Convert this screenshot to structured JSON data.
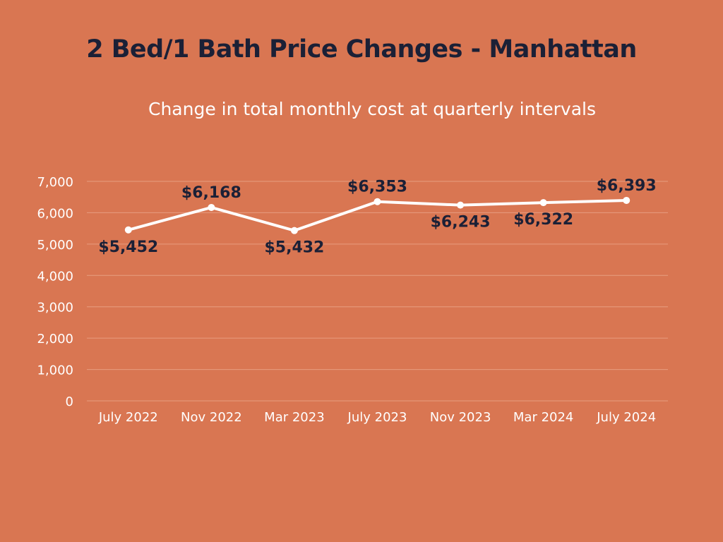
{
  "title": "2 Bed/1 Bath Price Changes - Manhattan",
  "subtitle": "Change in total monthly cost at quarterly intervals",
  "colors": {
    "background": "#d97652",
    "line": "#ffffff",
    "grid": "#e89d80",
    "title": "#1b2036",
    "data_label": "#1b2036"
  },
  "chart_data": {
    "type": "line",
    "title": "2 Bed/1 Bath Price Changes - Manhattan",
    "subtitle": "Change in total monthly cost at quarterly intervals",
    "xlabel": "",
    "ylabel": "",
    "categories": [
      "July 2022",
      "Nov 2022",
      "Mar 2023",
      "July 2023",
      "Nov 2023",
      "Mar 2024",
      "July 2024"
    ],
    "values": [
      5452,
      6168,
      5432,
      6353,
      6243,
      6322,
      6393
    ],
    "data_labels": [
      "$5,452",
      "$6,168",
      "$5,432",
      "$6,353",
      "$6,243",
      "$6,322",
      "$6,393"
    ],
    "label_positions": [
      "below",
      "above",
      "below",
      "above",
      "below",
      "below",
      "above"
    ],
    "ylim": [
      0,
      7000
    ],
    "yticks": [
      0,
      1000,
      2000,
      3000,
      4000,
      5000,
      6000,
      7000
    ],
    "ytick_labels": [
      "0",
      "1,000",
      "2,000",
      "3,000",
      "4,000",
      "5,000",
      "6,000",
      "7,000"
    ],
    "grid": true,
    "legend": "none"
  }
}
